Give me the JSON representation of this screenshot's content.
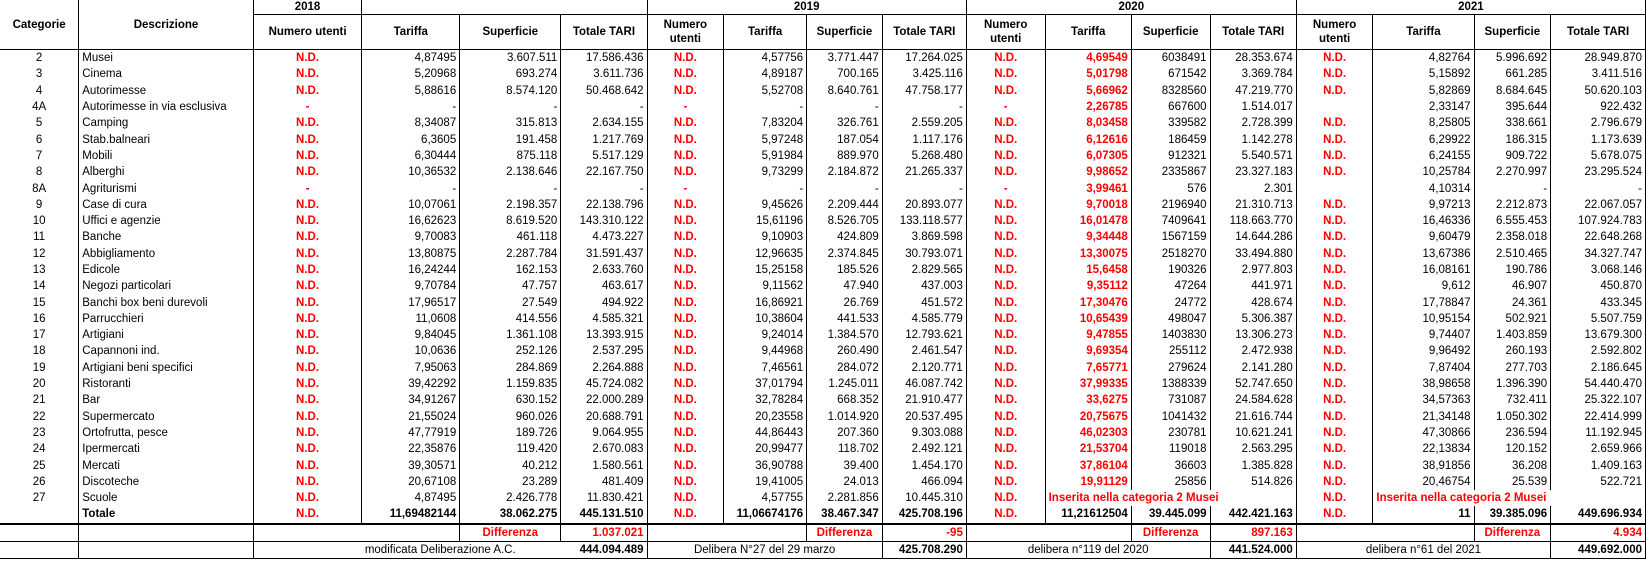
{
  "headers": {
    "categorie": "Categorie",
    "descrizione": "Descrizione",
    "years": [
      "2018",
      "2019",
      "2020",
      "2021"
    ],
    "numero_utenti": "Numero utenti",
    "tariffa": "Tariffa",
    "superficie": "Superficie",
    "totale_tari": "Totale TARI"
  },
  "rows": [
    {
      "cat": "2",
      "desc": "Musei",
      "y2018": [
        "N.D.",
        "4,87495",
        "3.607.511",
        "17.586.436"
      ],
      "y2019": [
        "N.D.",
        "4,57756",
        "3.771.447",
        "17.264.025"
      ],
      "y2020": [
        "N.D.",
        "4,69549",
        "6038491",
        "28.353.674"
      ],
      "y2021": [
        "N.D.",
        "4,82764",
        "5.996.692",
        "28.949.870"
      ]
    },
    {
      "cat": "3",
      "desc": "Cinema",
      "y2018": [
        "N.D.",
        "5,20968",
        "693.274",
        "3.611.736"
      ],
      "y2019": [
        "N.D.",
        "4,89187",
        "700.165",
        "3.425.116"
      ],
      "y2020": [
        "N.D.",
        "5,01798",
        "671542",
        "3.369.784"
      ],
      "y2021": [
        "N.D.",
        "5,15892",
        "661.285",
        "3.411.516"
      ]
    },
    {
      "cat": "4",
      "desc": "Autorimesse",
      "y2018": [
        "N.D.",
        "5,88616",
        "8.574.120",
        "50.468.642"
      ],
      "y2019": [
        "N.D.",
        "5,52708",
        "8.640.761",
        "47.758.177"
      ],
      "y2020": [
        "N.D.",
        "5,66962",
        "8328560",
        "47.219.770"
      ],
      "y2021": [
        "N.D.",
        "5,82869",
        "8.684.645",
        "50.620.103"
      ]
    },
    {
      "cat": "4A",
      "desc": "Autorimesse in via esclusiva",
      "y2018": [
        "-",
        "-",
        "-",
        "-"
      ],
      "y2019": [
        "-",
        "-",
        "-",
        "-"
      ],
      "y2020": [
        "-",
        "2,26785",
        "667600",
        "1.514.017"
      ],
      "y2021": [
        "",
        "2,33147",
        "395.644",
        "922.432"
      ]
    },
    {
      "cat": "5",
      "desc": "Camping",
      "y2018": [
        "N.D.",
        "8,34087",
        "315.813",
        "2.634.155"
      ],
      "y2019": [
        "N.D.",
        "7,83204",
        "326.761",
        "2.559.205"
      ],
      "y2020": [
        "N.D.",
        "8,03458",
        "339582",
        "2.728.399"
      ],
      "y2021": [
        "N.D.",
        "8,25805",
        "338.661",
        "2.796.679"
      ]
    },
    {
      "cat": "6",
      "desc": "Stab.balneari",
      "y2018": [
        "N.D.",
        "6,3605",
        "191.458",
        "1.217.769"
      ],
      "y2019": [
        "N.D.",
        "5,97248",
        "187.054",
        "1.117.176"
      ],
      "y2020": [
        "N.D.",
        "6,12616",
        "186459",
        "1.142.278"
      ],
      "y2021": [
        "N.D.",
        "6,29922",
        "186.315",
        "1.173.639"
      ]
    },
    {
      "cat": "7",
      "desc": "Mobili",
      "y2018": [
        "N.D.",
        "6,30444",
        "875.118",
        "5.517.129"
      ],
      "y2019": [
        "N.D.",
        "5,91984",
        "889.970",
        "5.268.480"
      ],
      "y2020": [
        "N.D.",
        "6,07305",
        "912321",
        "5.540.571"
      ],
      "y2021": [
        "N.D.",
        "6,24155",
        "909.722",
        "5.678.075"
      ]
    },
    {
      "cat": "8",
      "desc": "Alberghi",
      "y2018": [
        "N.D.",
        "10,36532",
        "2.138.646",
        "22.167.750"
      ],
      "y2019": [
        "N.D.",
        "9,73299",
        "2.184.872",
        "21.265.337"
      ],
      "y2020": [
        "N.D.",
        "9,98652",
        "2335867",
        "23.327.183"
      ],
      "y2021": [
        "N.D.",
        "10,25784",
        "2.270.997",
        "23.295.524"
      ]
    },
    {
      "cat": "8A",
      "desc": "Agriturismi",
      "y2018": [
        "-",
        "-",
        "-",
        "-"
      ],
      "y2019": [
        "-",
        "-",
        "-",
        "-"
      ],
      "y2020": [
        "-",
        "3,99461",
        "576",
        "2.301"
      ],
      "y2021": [
        "",
        "4,10314",
        "-",
        "-"
      ]
    },
    {
      "cat": "9",
      "desc": "Case di cura",
      "y2018": [
        "N.D.",
        "10,07061",
        "2.198.357",
        "22.138.796"
      ],
      "y2019": [
        "N.D.",
        "9,45626",
        "2.209.444",
        "20.893.077"
      ],
      "y2020": [
        "N.D.",
        "9,70018",
        "2196940",
        "21.310.713"
      ],
      "y2021": [
        "N.D.",
        "9,97213",
        "2.212.873",
        "22.067.057"
      ]
    },
    {
      "cat": "10",
      "desc": "Uffici e agenzie",
      "y2018": [
        "N.D.",
        "16,62623",
        "8.619.520",
        "143.310.122"
      ],
      "y2019": [
        "N.D.",
        "15,61196",
        "8.526.705",
        "133.118.577"
      ],
      "y2020": [
        "N.D.",
        "16,01478",
        "7409641",
        "118.663.770"
      ],
      "y2021": [
        "N.D.",
        "16,46336",
        "6.555.453",
        "107.924.783"
      ]
    },
    {
      "cat": "11",
      "desc": "Banche",
      "y2018": [
        "N.D.",
        "9,70083",
        "461.118",
        "4.473.227"
      ],
      "y2019": [
        "N.D.",
        "9,10903",
        "424.809",
        "3.869.598"
      ],
      "y2020": [
        "N.D.",
        "9,34448",
        "1567159",
        "14.644.286"
      ],
      "y2021": [
        "N.D.",
        "9,60479",
        "2.358.018",
        "22.648.268"
      ]
    },
    {
      "cat": "12",
      "desc": "Abbigliamento",
      "y2018": [
        "N.D.",
        "13,80875",
        "2.287.784",
        "31.591.437"
      ],
      "y2019": [
        "N.D.",
        "12,96635",
        "2.374.845",
        "30.793.071"
      ],
      "y2020": [
        "N.D.",
        "13,30075",
        "2518270",
        "33.494.880"
      ],
      "y2021": [
        "N.D.",
        "13,67386",
        "2.510.465",
        "34.327.747"
      ]
    },
    {
      "cat": "13",
      "desc": "Edicole",
      "y2018": [
        "N.D.",
        "16,24244",
        "162.153",
        "2.633.760"
      ],
      "y2019": [
        "N.D.",
        "15,25158",
        "185.526",
        "2.829.565"
      ],
      "y2020": [
        "N.D.",
        "15,6458",
        "190326",
        "2.977.803"
      ],
      "y2021": [
        "N.D.",
        "16,08161",
        "190.786",
        "3.068.146"
      ]
    },
    {
      "cat": "14",
      "desc": "Negozi particolari",
      "y2018": [
        "N.D.",
        "9,70784",
        "47.757",
        "463.617"
      ],
      "y2019": [
        "N.D.",
        "9,11562",
        "47.940",
        "437.003"
      ],
      "y2020": [
        "N.D.",
        "9,35112",
        "47264",
        "441.971"
      ],
      "y2021": [
        "N.D.",
        "9,612",
        "46.907",
        "450.870"
      ]
    },
    {
      "cat": "15",
      "desc": "Banchi box beni durevoli",
      "y2018": [
        "N.D.",
        "17,96517",
        "27.549",
        "494.922"
      ],
      "y2019": [
        "N.D.",
        "16,86921",
        "26.769",
        "451.572"
      ],
      "y2020": [
        "N.D.",
        "17,30476",
        "24772",
        "428.674"
      ],
      "y2021": [
        "N.D.",
        "17,78847",
        "24.361",
        "433.345"
      ]
    },
    {
      "cat": "16",
      "desc": "Parrucchieri",
      "y2018": [
        "N.D.",
        "11,0608",
        "414.556",
        "4.585.321"
      ],
      "y2019": [
        "N.D.",
        "10,38604",
        "441.533",
        "4.585.779"
      ],
      "y2020": [
        "N.D.",
        "10,65439",
        "498047",
        "5.306.387"
      ],
      "y2021": [
        "N.D.",
        "10,95154",
        "502.921",
        "5.507.759"
      ]
    },
    {
      "cat": "17",
      "desc": "Artigiani",
      "y2018": [
        "N.D.",
        "9,84045",
        "1.361.108",
        "13.393.915"
      ],
      "y2019": [
        "N.D.",
        "9,24014",
        "1.384.570",
        "12.793.621"
      ],
      "y2020": [
        "N.D.",
        "9,47855",
        "1403830",
        "13.306.273"
      ],
      "y2021": [
        "N.D.",
        "9,74407",
        "1.403.859",
        "13.679.300"
      ]
    },
    {
      "cat": "18",
      "desc": "Capannoni ind.",
      "y2018": [
        "N.D.",
        "10,0636",
        "252.126",
        "2.537.295"
      ],
      "y2019": [
        "N.D.",
        "9,44968",
        "260.490",
        "2.461.547"
      ],
      "y2020": [
        "N.D.",
        "9,69354",
        "255112",
        "2.472.938"
      ],
      "y2021": [
        "N.D.",
        "9,96492",
        "260.193",
        "2.592.802"
      ]
    },
    {
      "cat": "19",
      "desc": "Artigiani beni specifici",
      "y2018": [
        "N.D.",
        "7,95063",
        "284.869",
        "2.264.888"
      ],
      "y2019": [
        "N.D.",
        "7,46561",
        "284.072",
        "2.120.771"
      ],
      "y2020": [
        "N.D.",
        "7,65771",
        "279624",
        "2.141.280"
      ],
      "y2021": [
        "N.D.",
        "7,87404",
        "277.703",
        "2.186.645"
      ]
    },
    {
      "cat": "20",
      "desc": "Ristoranti",
      "y2018": [
        "N.D.",
        "39,42292",
        "1.159.835",
        "45.724.082"
      ],
      "y2019": [
        "N.D.",
        "37,01794",
        "1.245.011",
        "46.087.742"
      ],
      "y2020": [
        "N.D.",
        "37,99335",
        "1388339",
        "52.747.650"
      ],
      "y2021": [
        "N.D.",
        "38,98658",
        "1.396.390",
        "54.440.470"
      ]
    },
    {
      "cat": "21",
      "desc": "Bar",
      "y2018": [
        "N.D.",
        "34,91267",
        "630.152",
        "22.000.289"
      ],
      "y2019": [
        "N.D.",
        "32,78284",
        "668.352",
        "21.910.477"
      ],
      "y2020": [
        "N.D.",
        "33,6275",
        "731087",
        "24.584.628"
      ],
      "y2021": [
        "N.D.",
        "34,57363",
        "732.411",
        "25.322.107"
      ]
    },
    {
      "cat": "22",
      "desc": "Supermercato",
      "y2018": [
        "N.D.",
        "21,55024",
        "960.026",
        "20.688.791"
      ],
      "y2019": [
        "N.D.",
        "20,23558",
        "1.014.920",
        "20.537.495"
      ],
      "y2020": [
        "N.D.",
        "20,75675",
        "1041432",
        "21.616.744"
      ],
      "y2021": [
        "N.D.",
        "21,34148",
        "1.050.302",
        "22.414.999"
      ]
    },
    {
      "cat": "23",
      "desc": "Ortofrutta, pesce",
      "y2018": [
        "N.D.",
        "47,77919",
        "189.726",
        "9.064.955"
      ],
      "y2019": [
        "N.D.",
        "44,86443",
        "207.360",
        "9.303.088"
      ],
      "y2020": [
        "N.D.",
        "46,02303",
        "230781",
        "10.621.241"
      ],
      "y2021": [
        "N.D.",
        "47,30866",
        "236.594",
        "11.192.945"
      ]
    },
    {
      "cat": "24",
      "desc": "Ipermercati",
      "y2018": [
        "N.D.",
        "22,35876",
        "119.420",
        "2.670.083"
      ],
      "y2019": [
        "N.D.",
        "20,99477",
        "118.702",
        "2.492.121"
      ],
      "y2020": [
        "N.D.",
        "21,53704",
        "119018",
        "2.563.295"
      ],
      "y2021": [
        "N.D.",
        "22,13834",
        "120.152",
        "2.659.966"
      ]
    },
    {
      "cat": "25",
      "desc": "Mercati",
      "y2018": [
        "N.D.",
        "39,30571",
        "40.212",
        "1.580.561"
      ],
      "y2019": [
        "N.D.",
        "36,90788",
        "39.400",
        "1.454.170"
      ],
      "y2020": [
        "N.D.",
        "37,86104",
        "36603",
        "1.385.828"
      ],
      "y2021": [
        "N.D.",
        "38,91856",
        "36.208",
        "1.409.163"
      ]
    },
    {
      "cat": "26",
      "desc": "Discoteche",
      "y2018": [
        "N.D.",
        "20,67108",
        "23.289",
        "481.409"
      ],
      "y2019": [
        "N.D.",
        "19,41005",
        "24.013",
        "466.094"
      ],
      "y2020": [
        "N.D.",
        "19,91129",
        "25856",
        "514.826"
      ],
      "y2021": [
        "N.D.",
        "20,46754",
        "25.539",
        "522.721"
      ]
    },
    {
      "cat": "27",
      "desc": "Scuole",
      "y2018": [
        "N.D.",
        "4,87495",
        "2.426.778",
        "11.830.421"
      ],
      "y2019": [
        "N.D.",
        "4,57755",
        "2.281.856",
        "10.445.310"
      ],
      "y2020": [
        "N.D.",
        "Inserita nella categoria 2 Musei",
        "",
        ""
      ],
      "y2021": [
        "N.D.",
        "Inserita nella categoria 2 Musei",
        "",
        ""
      ]
    }
  ],
  "totals": {
    "label": "Totale",
    "y2018": [
      "N.D.",
      "11,69482144",
      "38.062.275",
      "445.131.510"
    ],
    "y2019": [
      "N.D.",
      "11,06674176",
      "38.467.347",
      "425.708.196"
    ],
    "y2020": [
      "N.D.",
      "11,21612504",
      "39.445.099",
      "442.421.163"
    ],
    "y2021": [
      "N.D.",
      "11",
      "39.385.096",
      "449.696.934"
    ]
  },
  "differenza": {
    "label": "Differenza",
    "y2018": "1.037.021",
    "y2019": "-95",
    "y2020": "897.163",
    "y2021": "4.934"
  },
  "delibere": {
    "y2018": {
      "label": "modificata Deliberazione A.C.",
      "value": "444.094.489"
    },
    "y2019": {
      "label": "Delibera N°27 del 29 marzo",
      "value": "425.708.290"
    },
    "y2020": {
      "label": "delibera n°119 del 2020",
      "value": "441.524.000"
    },
    "y2021": {
      "label": "delibera n°61 del 2021",
      "value": "449.692.000"
    }
  },
  "colors": {
    "highlight": "#ff0000"
  }
}
